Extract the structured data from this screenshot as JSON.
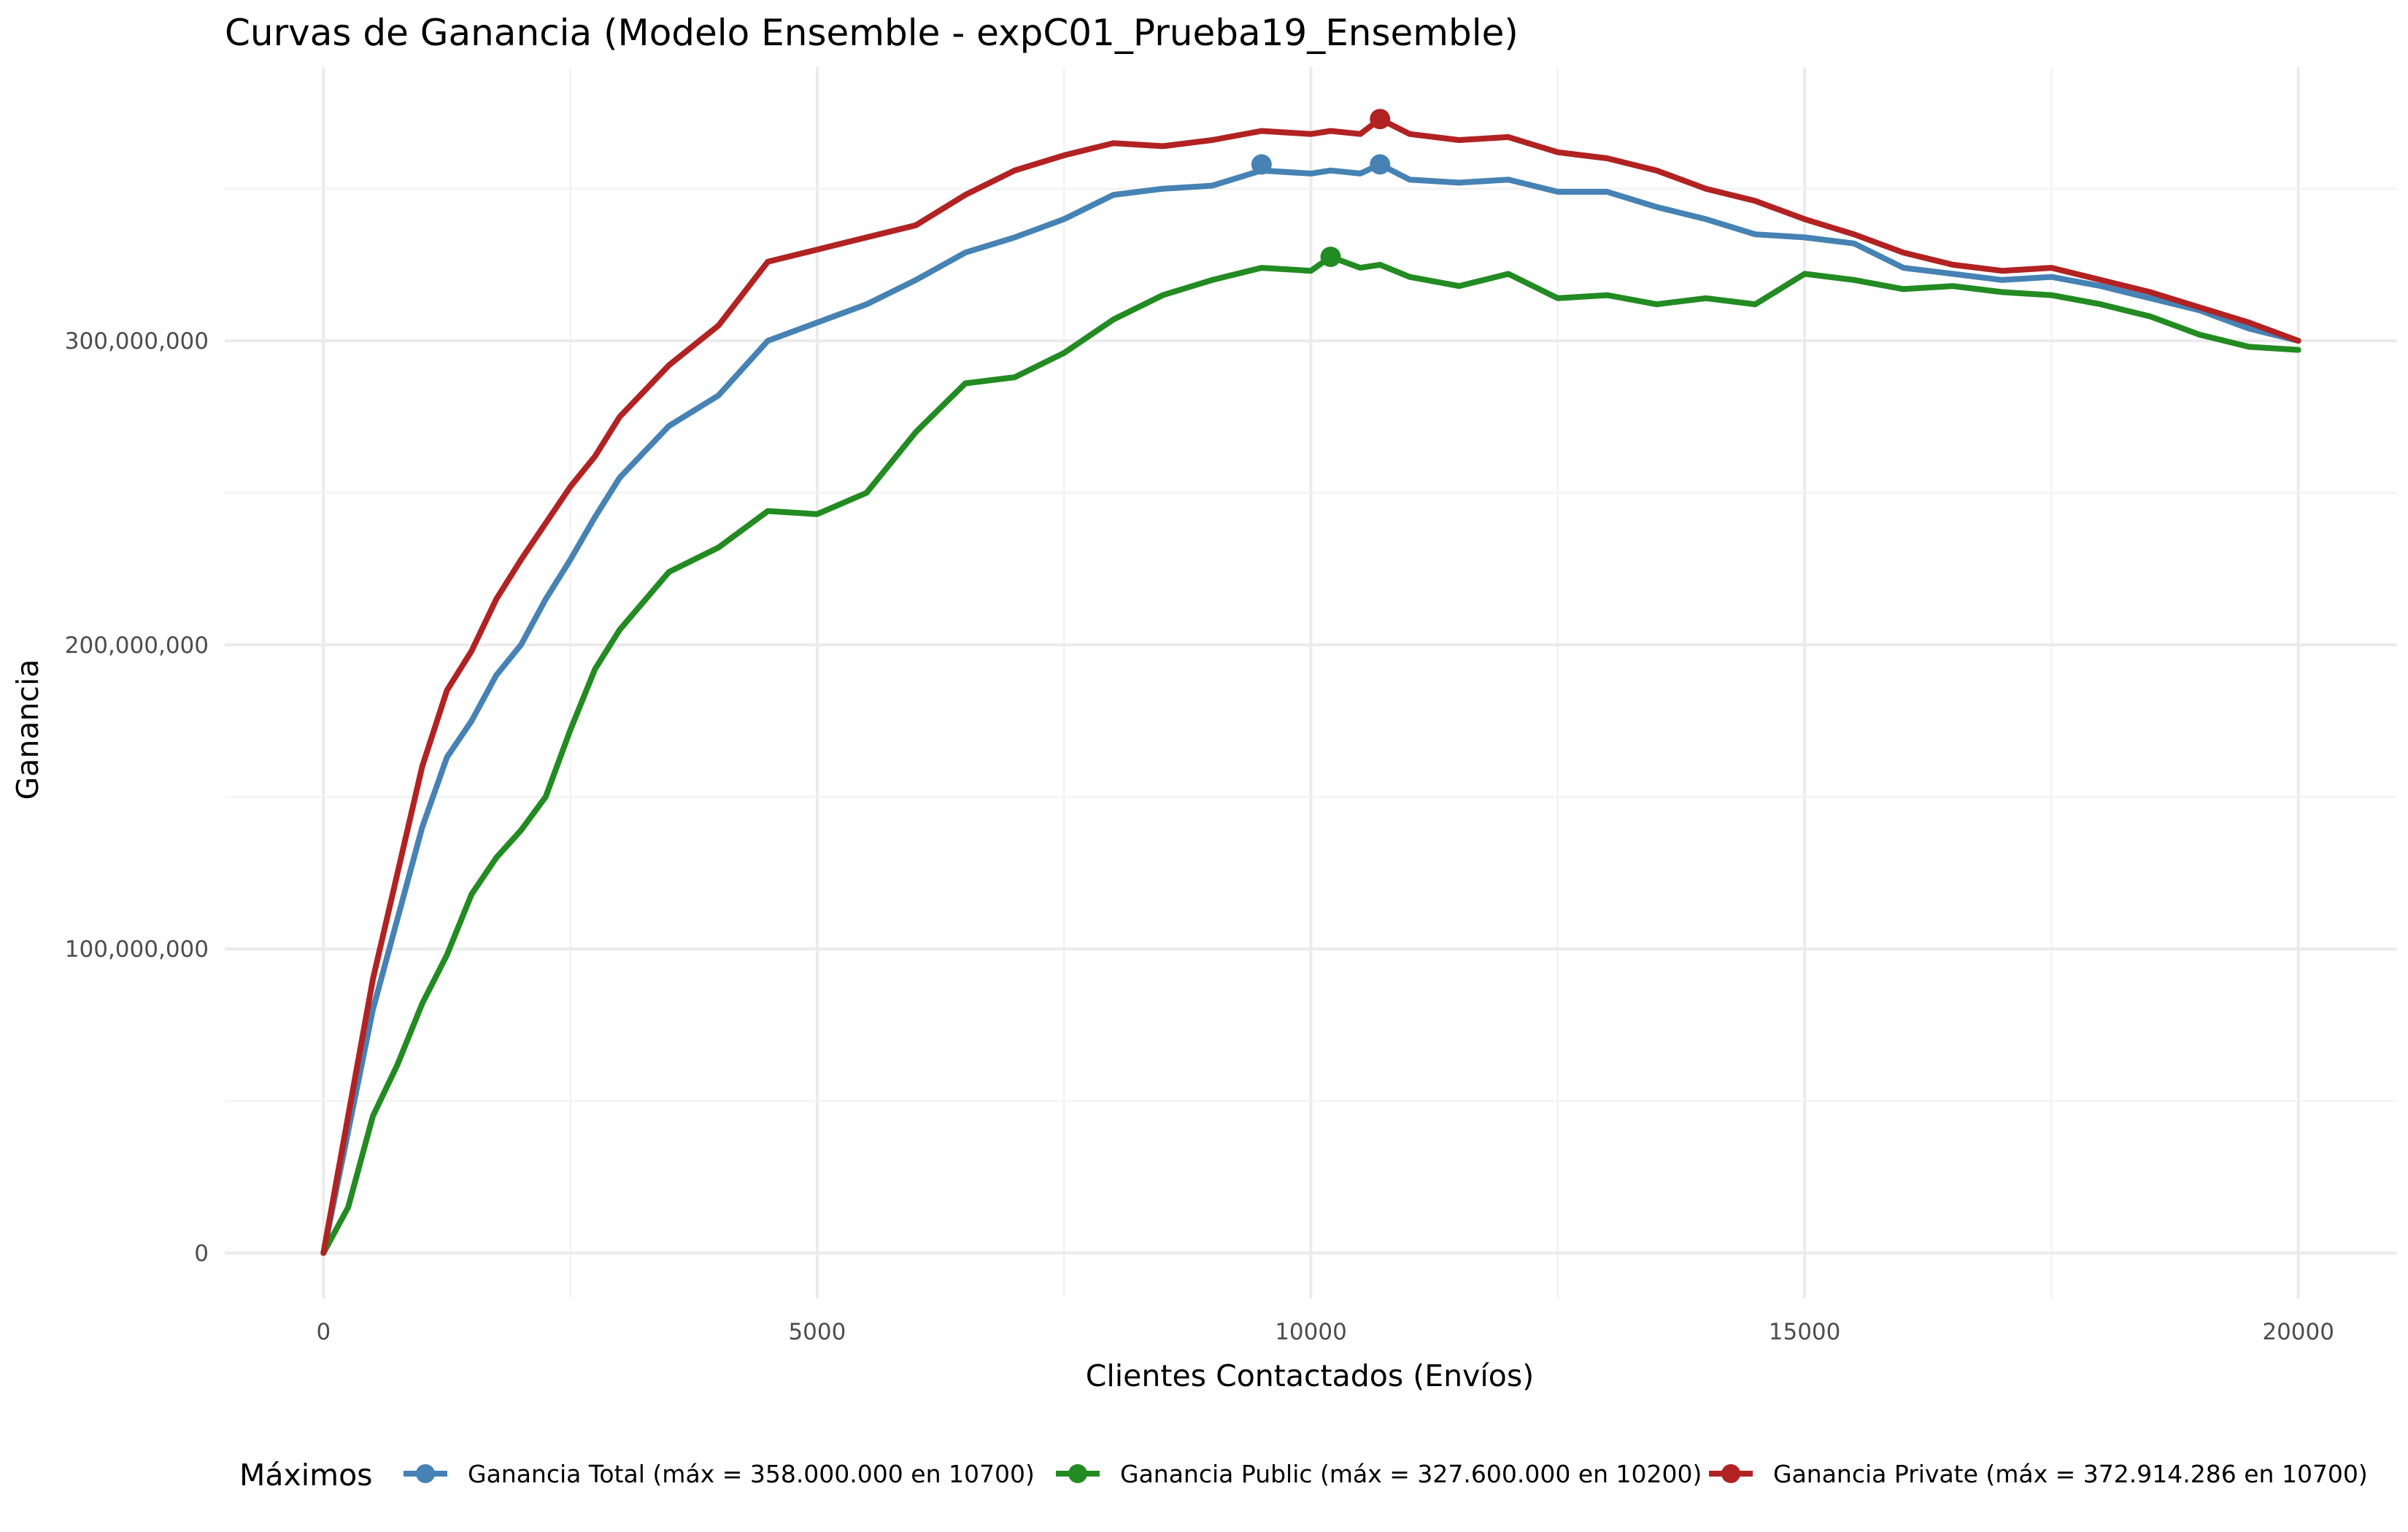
{
  "chart_data": {
    "type": "line",
    "title": "Curvas de Ganancia (Modelo Ensemble - expC01_Prueba19_Ensemble)",
    "xlabel": "Clientes Contactados (Envíos)",
    "ylabel": "Ganancia",
    "xlim": [
      -1000,
      21000
    ],
    "ylim": [
      -15000000,
      390000000
    ],
    "x_ticks": [
      0,
      5000,
      10000,
      15000,
      20000
    ],
    "x_tick_labels": [
      "0",
      "5000",
      "10000",
      "15000",
      "20000"
    ],
    "y_ticks": [
      0,
      100000000,
      200000000,
      300000000
    ],
    "y_tick_labels": [
      "0",
      "100,000,000",
      "200,000,000",
      "300,000,000"
    ],
    "grid": true,
    "legend_title": "Máximos",
    "legend_position": "bottom",
    "x": [
      0,
      250,
      500,
      750,
      1000,
      1250,
      1500,
      1750,
      2000,
      2250,
      2500,
      2750,
      3000,
      3500,
      4000,
      4500,
      5000,
      5500,
      6000,
      6500,
      7000,
      7500,
      8000,
      8500,
      9000,
      9500,
      10000,
      10200,
      10500,
      10700,
      11000,
      11500,
      12000,
      12500,
      13000,
      13500,
      14000,
      14500,
      15000,
      15500,
      16000,
      16500,
      17000,
      17500,
      18000,
      18500,
      19000,
      19500,
      20000
    ],
    "series": [
      {
        "name": "Ganancia Total (máx = 358.000.000 en 10700)",
        "color": "#4682b4",
        "max_x": 10700,
        "max_y": 358000000,
        "extra_marker": {
          "x": 9500,
          "y": 358000000
        },
        "values": [
          0,
          40000000,
          80000000,
          110000000,
          140000000,
          163000000,
          175000000,
          190000000,
          200000000,
          215000000,
          228000000,
          242000000,
          255000000,
          272000000,
          282000000,
          300000000,
          306000000,
          312000000,
          320000000,
          329000000,
          334000000,
          340000000,
          348000000,
          350000000,
          351000000,
          356000000,
          355000000,
          356000000,
          355000000,
          358000000,
          353000000,
          352000000,
          353000000,
          349000000,
          349000000,
          344000000,
          340000000,
          335000000,
          334000000,
          332000000,
          324000000,
          322000000,
          320000000,
          321000000,
          318000000,
          314000000,
          310000000,
          304000000,
          300000000
        ]
      },
      {
        "name": "Ganancia Public (máx = 327.600.000 en 10200)",
        "color": "#228b22",
        "max_x": 10200,
        "max_y": 327600000,
        "values": [
          0,
          15000000,
          45000000,
          62000000,
          82000000,
          98000000,
          118000000,
          130000000,
          139000000,
          150000000,
          172000000,
          192000000,
          205000000,
          224000000,
          232000000,
          244000000,
          243000000,
          250000000,
          270000000,
          286000000,
          288000000,
          296000000,
          307000000,
          315000000,
          320000000,
          324000000,
          323000000,
          327600000,
          324000000,
          325000000,
          321000000,
          318000000,
          322000000,
          314000000,
          315000000,
          312000000,
          314000000,
          312000000,
          322000000,
          320000000,
          317000000,
          318000000,
          316000000,
          315000000,
          312000000,
          308000000,
          302000000,
          298000000,
          297000000
        ]
      },
      {
        "name": "Ganancia Private (máx = 372.914.286 en 10700)",
        "color": "#b22222",
        "max_x": 10700,
        "max_y": 372914286,
        "values": [
          0,
          45000000,
          90000000,
          125000000,
          160000000,
          185000000,
          198000000,
          215000000,
          228000000,
          240000000,
          252000000,
          262000000,
          275000000,
          292000000,
          305000000,
          326000000,
          330000000,
          334000000,
          338000000,
          348000000,
          356000000,
          361000000,
          365000000,
          364000000,
          366000000,
          369000000,
          368000000,
          369000000,
          368000000,
          372914286,
          368000000,
          366000000,
          367000000,
          362000000,
          360000000,
          356000000,
          350000000,
          346000000,
          340000000,
          335000000,
          329000000,
          325000000,
          323000000,
          324000000,
          320000000,
          316000000,
          311000000,
          306000000,
          300000000
        ]
      }
    ]
  }
}
